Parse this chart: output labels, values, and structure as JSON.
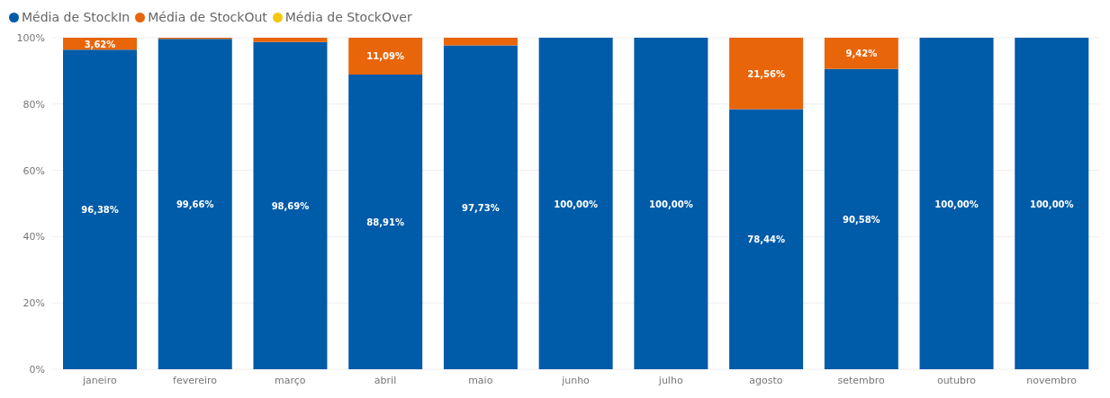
{
  "chart_data": {
    "type": "bar",
    "stacked": true,
    "categories": [
      "janeiro",
      "fevereiro",
      "março",
      "abril",
      "maio",
      "junho",
      "julho",
      "agosto",
      "setembro",
      "outubro",
      "novembro"
    ],
    "series": [
      {
        "name": "Média de StockIn",
        "color": "#005ba9",
        "values": [
          96.38,
          99.66,
          98.69,
          88.91,
          97.73,
          100,
          100,
          78.44,
          90.58,
          100,
          100
        ],
        "value_labels": [
          "96,38%",
          "99,66%",
          "98,69%",
          "88,91%",
          "97,73%",
          "100,00%",
          "100,00%",
          "78,44%",
          "90,58%",
          "100,00%",
          "100,00%"
        ]
      },
      {
        "name": "Média de StockOut",
        "color": "#e8650a",
        "values": [
          3.62,
          0.34,
          1.31,
          11.09,
          2.27,
          0,
          0,
          21.56,
          9.42,
          0,
          0
        ],
        "value_labels": [
          "3,62%",
          null,
          null,
          "11,09%",
          null,
          null,
          null,
          "21,56%",
          "9,42%",
          null,
          null
        ]
      },
      {
        "name": "Média de StockOver",
        "color": "#f2c811",
        "values": [
          0,
          0,
          0,
          0,
          0,
          0,
          0,
          0,
          0,
          0,
          0
        ]
      }
    ],
    "ylim": [
      0,
      100
    ],
    "yticks": [
      {
        "value": 0,
        "label": "0%"
      },
      {
        "value": 20,
        "label": "20%"
      },
      {
        "value": 40,
        "label": "40%"
      },
      {
        "value": 60,
        "label": "60%"
      },
      {
        "value": 80,
        "label": "80%"
      },
      {
        "value": 100,
        "label": "100%"
      }
    ],
    "grid": "y",
    "legend": "top left"
  }
}
